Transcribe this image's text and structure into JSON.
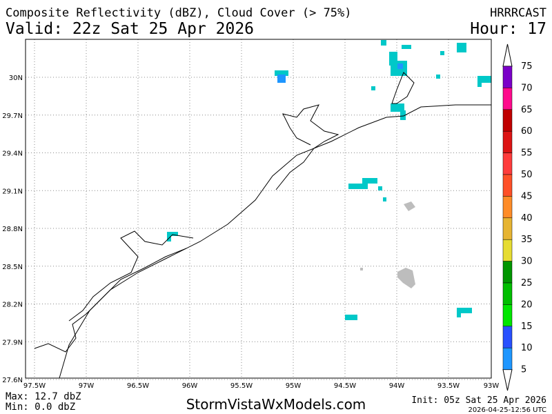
{
  "header": {
    "title": "Composite Reflectivity (dBZ), Cloud Cover (> 75%)",
    "valid": "Valid: 22z Sat 25 Apr 2026",
    "model": "HRRRCAST",
    "hour": "Hour: 17"
  },
  "map": {
    "lon_labels": [
      "97.5W",
      "97W",
      "96.5W",
      "96W",
      "95.5W",
      "95W",
      "94.5W",
      "94W",
      "93.5W",
      "93W"
    ],
    "lat_labels": [
      "30N",
      "29.7N",
      "29.4N",
      "29.1N",
      "28.8N",
      "28.5N",
      "28.2N",
      "27.9N",
      "27.6N"
    ]
  },
  "legend": {
    "labels": [
      "75",
      "70",
      "65",
      "60",
      "55",
      "50",
      "45",
      "40",
      "35",
      "30",
      "25",
      "20",
      "15",
      "10",
      "5"
    ],
    "colors": [
      "#7a00c8",
      "#ff0a8c",
      "#c00000",
      "#dc1414",
      "#ff3c3c",
      "#ff5028",
      "#ff8c28",
      "#e6b432",
      "#e6dc32",
      "#009600",
      "#00be00",
      "#00e600",
      "#2850ff",
      "#1e96ff",
      "#00c8c8"
    ]
  },
  "footer": {
    "max": "Max: 12.7 dbZ",
    "min": "Min: 0.0 dbZ",
    "site": "StormVistaWxModels.com",
    "init": "Init: 05z Sat 25 Apr 2026",
    "stamp": "2026-04-25-12:56 UTC"
  }
}
